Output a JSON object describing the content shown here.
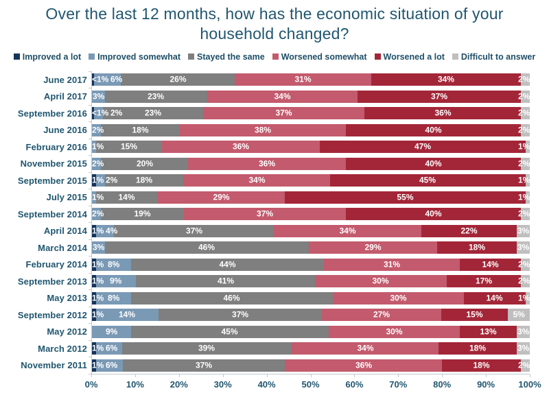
{
  "title": "Over the last 12 months, how has the economic situation of your household changed?",
  "colors": {
    "text": "#20566F",
    "axis": "#C2C8CC",
    "segment_label": "#FFFFFF"
  },
  "chart_data": {
    "type": "bar",
    "stacked": true,
    "orientation": "horizontal",
    "title": "Over the last 12 months, how has the economic situation of your household changed?",
    "xlabel": "",
    "ylabel": "",
    "legend_position": "top",
    "grid": false,
    "x_axis": {
      "min": 0,
      "max": 100,
      "tick_step": 10,
      "tick_labels": [
        "0%",
        "10%",
        "20%",
        "30%",
        "40%",
        "50%",
        "60%",
        "70%",
        "80%",
        "90%",
        "100%"
      ]
    },
    "series_names": [
      "Improved a lot",
      "Improved somewhat",
      "Stayed the same",
      "Worsened somewhat",
      "Worsened a lot",
      "Difficult to answer"
    ],
    "palette": [
      "#16355C",
      "#7A99B5",
      "#7F7F7F",
      "#C35A6D",
      "#A32638",
      "#BFBFBF"
    ],
    "categories": [
      "June 2017",
      "April 2017",
      "September 2016",
      "June 2016",
      "February 2016",
      "November 2015",
      "September 2015",
      "July 2015",
      "September 2014",
      "April 2014",
      "March 2014",
      "February 2014",
      "September 2013",
      "May 2013",
      "September 2012",
      "May 2012",
      "March 2012",
      "November 2011"
    ],
    "rows": [
      {
        "category": "June 2017",
        "values": [
          0.5,
          6,
          26,
          31,
          34,
          2
        ],
        "labels": [
          "<1%",
          "6%",
          "26%",
          "31%",
          "34%",
          "2%"
        ]
      },
      {
        "category": "April 2017",
        "values": [
          0,
          3,
          23,
          34,
          37,
          2
        ],
        "labels": [
          "",
          "3%",
          "23%",
          "34%",
          "37%",
          "2%"
        ]
      },
      {
        "category": "September 2016",
        "values": [
          0.5,
          2,
          23,
          37,
          36,
          2
        ],
        "labels": [
          "<1%",
          "2%",
          "23%",
          "37%",
          "36%",
          "2%"
        ]
      },
      {
        "category": "June 2016",
        "values": [
          0,
          2,
          18,
          38,
          40,
          2
        ],
        "labels": [
          "",
          "2%",
          "18%",
          "38%",
          "40%",
          "2%"
        ]
      },
      {
        "category": "February 2016",
        "values": [
          0,
          1,
          15,
          36,
          47,
          1
        ],
        "labels": [
          "",
          "1%",
          "15%",
          "36%",
          "47%",
          "1%"
        ]
      },
      {
        "category": "November 2015",
        "values": [
          0,
          2,
          20,
          36,
          40,
          2
        ],
        "labels": [
          "",
          "2%",
          "20%",
          "36%",
          "40%",
          "2%"
        ]
      },
      {
        "category": "September 2015",
        "values": [
          1,
          2,
          18,
          34,
          45,
          1
        ],
        "labels": [
          "1%",
          "2%",
          "18%",
          "34%",
          "45%",
          "1%"
        ]
      },
      {
        "category": "July 2015",
        "values": [
          0,
          1,
          14,
          29,
          55,
          1
        ],
        "labels": [
          "",
          "1%",
          "14%",
          "29%",
          "55%",
          "1%"
        ]
      },
      {
        "category": "September 2014",
        "values": [
          0,
          2,
          19,
          37,
          40,
          2
        ],
        "labels": [
          "",
          "2%",
          "19%",
          "37%",
          "40%",
          "2%"
        ]
      },
      {
        "category": "April 2014",
        "values": [
          1,
          4,
          37,
          34,
          22,
          3
        ],
        "labels": [
          "1%",
          "4%",
          "37%",
          "34%",
          "22%",
          "3%"
        ]
      },
      {
        "category": "March 2014",
        "values": [
          0,
          3,
          46,
          29,
          18,
          3
        ],
        "labels": [
          "",
          "3%",
          "46%",
          "29%",
          "18%",
          "3%"
        ]
      },
      {
        "category": "February 2014",
        "values": [
          1,
          8,
          44,
          31,
          14,
          2
        ],
        "labels": [
          "1%",
          "8%",
          "44%",
          "31%",
          "14%",
          "2%"
        ]
      },
      {
        "category": "September 2013",
        "values": [
          1,
          9,
          41,
          30,
          17,
          2
        ],
        "labels": [
          "1%",
          "9%",
          "41%",
          "30%",
          "17%",
          "2%"
        ]
      },
      {
        "category": "May 2013",
        "values": [
          1,
          8,
          46,
          30,
          14,
          1
        ],
        "labels": [
          "1%",
          "8%",
          "46%",
          "30%",
          "14%",
          "1%"
        ]
      },
      {
        "category": "September 2012",
        "values": [
          1,
          14,
          37,
          27,
          15,
          5
        ],
        "labels": [
          "1%",
          "14%",
          "37%",
          "27%",
          "15%",
          "5%"
        ]
      },
      {
        "category": "May 2012",
        "values": [
          0,
          9,
          45,
          30,
          13,
          3
        ],
        "labels": [
          "",
          "9%",
          "45%",
          "30%",
          "13%",
          "3%"
        ]
      },
      {
        "category": "March 2012",
        "values": [
          1,
          6,
          39,
          34,
          18,
          3
        ],
        "labels": [
          "1%",
          "6%",
          "39%",
          "34%",
          "18%",
          "3%"
        ]
      },
      {
        "category": "November 2011",
        "values": [
          1,
          6,
          37,
          36,
          18,
          2
        ],
        "labels": [
          "1%",
          "6%",
          "37%",
          "36%",
          "18%",
          "2%"
        ]
      }
    ]
  }
}
